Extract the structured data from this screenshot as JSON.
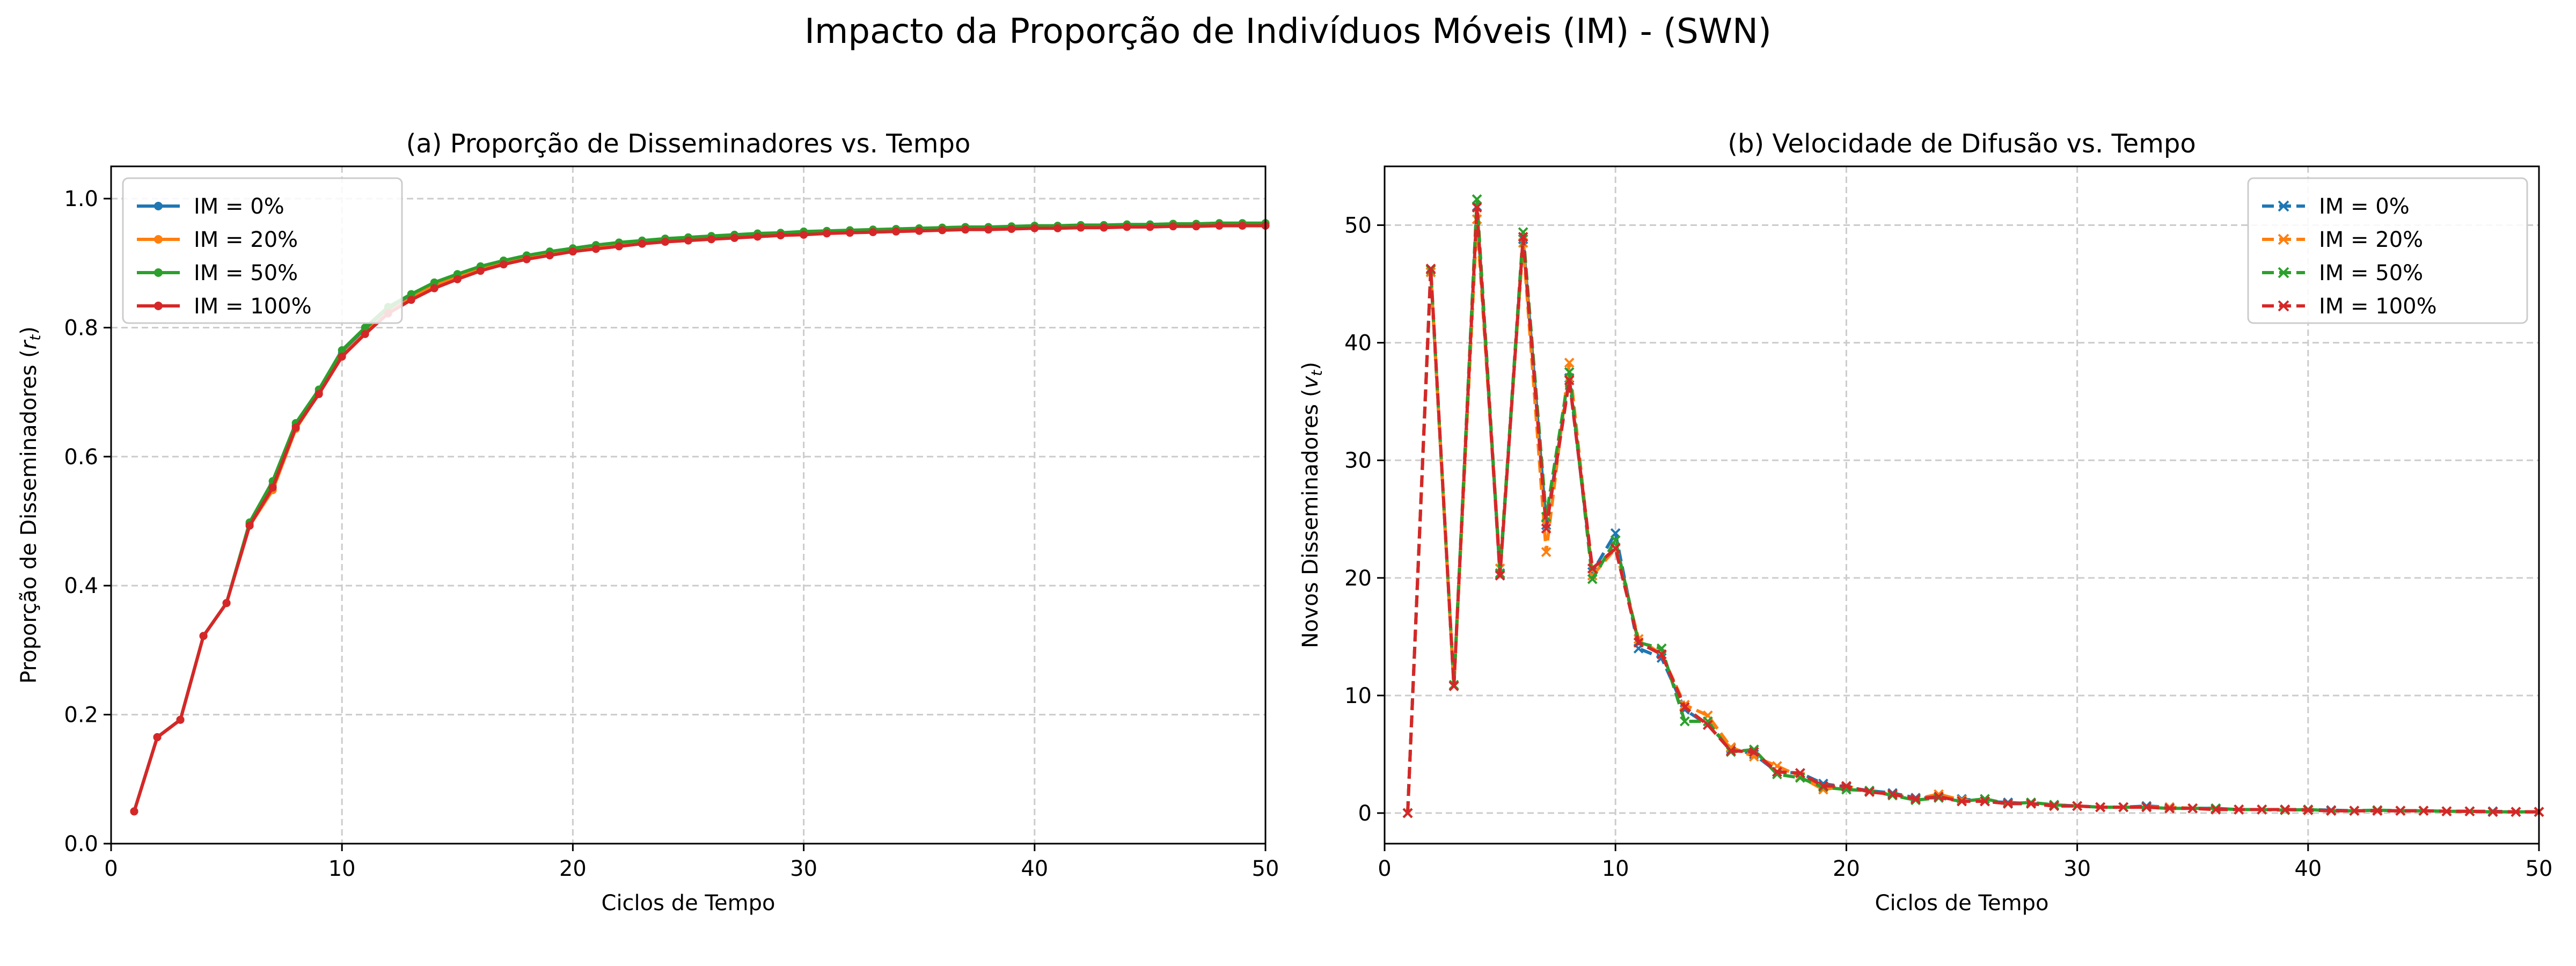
{
  "figure": {
    "title": "Impacto da Proporção de Indivíduos Móveis (IM) - (SWN)"
  },
  "colors": {
    "im_0": "#1f77b4",
    "im_20": "#ff7f0e",
    "im_50": "#2ca02c",
    "im_100": "#d62728",
    "grid": "#cccccc"
  },
  "chart_data": [
    {
      "type": "line",
      "title": "(a) Proporção de Disseminadores vs. Tempo",
      "xlabel": "Ciclos de Tempo",
      "ylabel_main": "Proporção de Disseminadores (",
      "ylabel_var": "r",
      "ylabel_sub": "t",
      "ylabel_close": ")",
      "xlim": [
        0,
        50
      ],
      "ylim": [
        0,
        1.05
      ],
      "xticks": [
        0,
        10,
        20,
        30,
        40,
        50
      ],
      "yticks": [
        0.0,
        0.2,
        0.4,
        0.6,
        0.8,
        1.0
      ],
      "ytick_labels": [
        "0.0",
        "0.2",
        "0.4",
        "0.6",
        "0.8",
        "1.0"
      ],
      "grid": true,
      "legend_position": "upper-left",
      "marker": "circle",
      "line_style": "solid",
      "x": [
        1,
        2,
        3,
        4,
        5,
        6,
        7,
        8,
        9,
        10,
        11,
        12,
        13,
        14,
        15,
        16,
        17,
        18,
        19,
        20,
        21,
        22,
        23,
        24,
        25,
        26,
        27,
        28,
        29,
        30,
        31,
        32,
        33,
        34,
        35,
        36,
        37,
        38,
        39,
        40,
        41,
        42,
        43,
        44,
        45,
        46,
        47,
        48,
        49,
        50
      ],
      "series": [
        {
          "name": "IM = 0%",
          "color_key": "im_0",
          "values": [
            0.05,
            0.165,
            0.192,
            0.322,
            0.373,
            0.496,
            0.556,
            0.648,
            0.7,
            0.76,
            0.795,
            0.826,
            0.848,
            0.866,
            0.879,
            0.892,
            0.901,
            0.909,
            0.915,
            0.92,
            0.925,
            0.929,
            0.932,
            0.935,
            0.937,
            0.939,
            0.941,
            0.943,
            0.944,
            0.946,
            0.947,
            0.948,
            0.949,
            0.95,
            0.951,
            0.952,
            0.953,
            0.954,
            0.955,
            0.955,
            0.956,
            0.957,
            0.957,
            0.958,
            0.958,
            0.959,
            0.959,
            0.96,
            0.96,
            0.961
          ]
        },
        {
          "name": "IM = 20%",
          "color_key": "im_20",
          "values": [
            0.05,
            0.165,
            0.192,
            0.322,
            0.373,
            0.493,
            0.548,
            0.643,
            0.698,
            0.757,
            0.792,
            0.824,
            0.846,
            0.865,
            0.878,
            0.891,
            0.9,
            0.909,
            0.915,
            0.92,
            0.925,
            0.929,
            0.933,
            0.936,
            0.938,
            0.94,
            0.942,
            0.944,
            0.946,
            0.947,
            0.948,
            0.949,
            0.95,
            0.951,
            0.952,
            0.953,
            0.954,
            0.955,
            0.956,
            0.956,
            0.957,
            0.958,
            0.958,
            0.959,
            0.959,
            0.96,
            0.96,
            0.961,
            0.961,
            0.962
          ]
        },
        {
          "name": "IM = 50%",
          "color_key": "im_50",
          "values": [
            0.05,
            0.165,
            0.192,
            0.322,
            0.373,
            0.498,
            0.562,
            0.652,
            0.704,
            0.765,
            0.8,
            0.832,
            0.852,
            0.87,
            0.883,
            0.895,
            0.904,
            0.912,
            0.918,
            0.923,
            0.928,
            0.932,
            0.935,
            0.938,
            0.94,
            0.942,
            0.944,
            0.946,
            0.947,
            0.949,
            0.95,
            0.951,
            0.952,
            0.953,
            0.954,
            0.955,
            0.956,
            0.956,
            0.957,
            0.958,
            0.958,
            0.959,
            0.959,
            0.96,
            0.96,
            0.961,
            0.961,
            0.962,
            0.962,
            0.962
          ]
        },
        {
          "name": "IM = 100%",
          "color_key": "im_100",
          "values": [
            0.05,
            0.165,
            0.192,
            0.322,
            0.373,
            0.493,
            0.552,
            0.645,
            0.697,
            0.755,
            0.79,
            0.822,
            0.843,
            0.861,
            0.875,
            0.888,
            0.898,
            0.906,
            0.912,
            0.918,
            0.922,
            0.926,
            0.93,
            0.933,
            0.935,
            0.937,
            0.939,
            0.941,
            0.943,
            0.944,
            0.946,
            0.947,
            0.948,
            0.949,
            0.95,
            0.951,
            0.952,
            0.952,
            0.953,
            0.954,
            0.954,
            0.955,
            0.955,
            0.956,
            0.956,
            0.957,
            0.957,
            0.958,
            0.958,
            0.958
          ]
        }
      ]
    },
    {
      "type": "line",
      "title": "(b) Velocidade de Difusão vs. Tempo",
      "xlabel": "Ciclos de Tempo",
      "ylabel_main": "Novos Disseminadores (",
      "ylabel_var": "v",
      "ylabel_sub": "t",
      "ylabel_close": ")",
      "xlim": [
        0,
        50
      ],
      "ylim": [
        -2.6,
        55
      ],
      "xticks": [
        0,
        10,
        20,
        30,
        40,
        50
      ],
      "yticks": [
        0,
        10,
        20,
        30,
        40,
        50
      ],
      "ytick_labels": [
        "0",
        "10",
        "20",
        "30",
        "40",
        "50"
      ],
      "grid": true,
      "legend_position": "upper-right",
      "marker": "x",
      "line_style": "dashed",
      "x": [
        1,
        2,
        3,
        4,
        5,
        6,
        7,
        8,
        9,
        10,
        11,
        12,
        13,
        14,
        15,
        16,
        17,
        18,
        19,
        20,
        21,
        22,
        23,
        24,
        25,
        26,
        27,
        28,
        29,
        30,
        31,
        32,
        33,
        34,
        35,
        36,
        37,
        38,
        39,
        40,
        41,
        42,
        43,
        44,
        45,
        46,
        47,
        48,
        49,
        50
      ],
      "series": [
        {
          "name": "IM = 0%",
          "color_key": "im_0",
          "values": [
            0,
            46,
            10.8,
            51.6,
            20.3,
            48.8,
            24.5,
            37,
            20.5,
            23.8,
            14,
            13.2,
            8.8,
            7.5,
            5.5,
            5,
            3.5,
            3.4,
            2.5,
            2.2,
            1.9,
            1.7,
            1.3,
            1.3,
            1.2,
            1,
            0.9,
            0.8,
            0.7,
            0.6,
            0.5,
            0.5,
            0.6,
            0.5,
            0.4,
            0.4,
            0.3,
            0.3,
            0.3,
            0.3,
            0.25,
            0.2,
            0.2,
            0.2,
            0.2,
            0.15,
            0.15,
            0.15,
            0.1,
            0.1
          ]
        },
        {
          "name": "IM = 20%",
          "color_key": "im_20",
          "values": [
            0,
            46,
            10.8,
            50.5,
            20.8,
            48.5,
            22.2,
            38.3,
            20.2,
            22.5,
            14.8,
            13.5,
            9.2,
            8.3,
            5.6,
            4.8,
            4,
            3.1,
            2,
            2.3,
            1.8,
            1.6,
            1.2,
            1.6,
            1.1,
            1,
            0.8,
            0.8,
            0.6,
            0.6,
            0.5,
            0.5,
            0.5,
            0.5,
            0.4,
            0.3,
            0.3,
            0.3,
            0.3,
            0.25,
            0.2,
            0.2,
            0.2,
            0.2,
            0.2,
            0.15,
            0.15,
            0.1,
            0.1,
            0.1
          ]
        },
        {
          "name": "IM = 50%",
          "color_key": "im_50",
          "values": [
            0,
            46.2,
            10.9,
            52.2,
            20.4,
            49.4,
            25.2,
            37.5,
            19.9,
            23.2,
            14.5,
            14,
            7.8,
            7.8,
            5.2,
            5.4,
            3.3,
            3,
            2.2,
            2,
            1.9,
            1.5,
            1.1,
            1.3,
            1,
            1.2,
            0.8,
            0.9,
            0.7,
            0.6,
            0.5,
            0.5,
            0.5,
            0.4,
            0.4,
            0.4,
            0.3,
            0.3,
            0.25,
            0.3,
            0.2,
            0.2,
            0.25,
            0.2,
            0.2,
            0.15,
            0.15,
            0.1,
            0.1,
            0.1
          ]
        },
        {
          "name": "IM = 100%",
          "color_key": "im_100",
          "values": [
            0,
            46.3,
            10.8,
            51.5,
            20.2,
            49,
            24.2,
            36.8,
            20.8,
            22.5,
            14.5,
            13.5,
            9,
            7.5,
            5.3,
            5.2,
            3.5,
            3.4,
            2.3,
            2.3,
            1.8,
            1.6,
            1.2,
            1.4,
            1,
            1,
            0.8,
            0.8,
            0.6,
            0.6,
            0.5,
            0.5,
            0.5,
            0.4,
            0.4,
            0.3,
            0.3,
            0.3,
            0.3,
            0.25,
            0.2,
            0.2,
            0.2,
            0.2,
            0.2,
            0.15,
            0.15,
            0.1,
            0.1,
            0.1
          ]
        }
      ]
    }
  ]
}
